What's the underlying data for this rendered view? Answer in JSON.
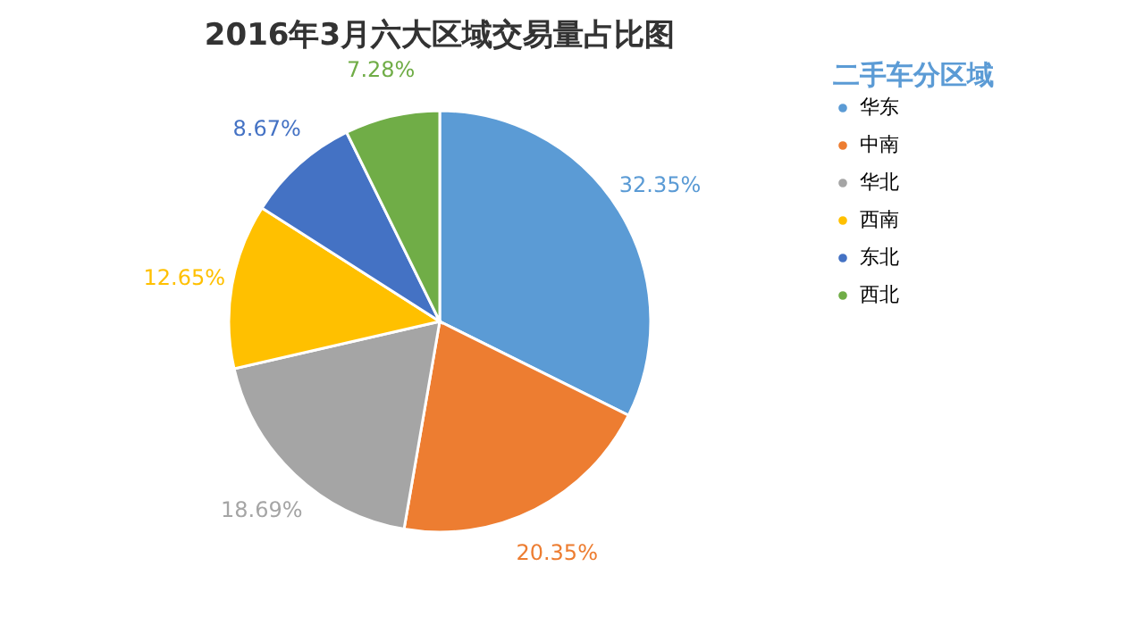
{
  "chart_data": {
    "type": "pie",
    "title": "2016年3月六大区域交易量占比图",
    "legend_title": "二手车分区域",
    "legend": "right",
    "categories": [
      "华东",
      "中南",
      "华北",
      "西南",
      "东北",
      "西北"
    ],
    "values": [
      32.35,
      20.35,
      18.69,
      12.65,
      8.67,
      7.28
    ],
    "colors": [
      "#5b9bd5",
      "#ed7d31",
      "#a5a5a5",
      "#ffc000",
      "#4472c4",
      "#70ad47"
    ],
    "value_labels": [
      "32.35%",
      "20.35%",
      "18.69%",
      "12.65%",
      "8.67%",
      "7.28%"
    ]
  }
}
